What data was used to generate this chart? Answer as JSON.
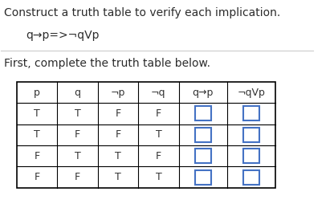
{
  "title_line1": "Construct a truth table to verify each implication.",
  "title_line2": "q→p=>¬qVp",
  "subtitle": "First, complete the truth table below.",
  "headers": [
    "p",
    "q",
    "¬p",
    "¬q",
    "q→p",
    "¬qVp"
  ],
  "rows": [
    [
      "T",
      "T",
      "F",
      "F",
      "",
      ""
    ],
    [
      "T",
      "F",
      "F",
      "T",
      "",
      ""
    ],
    [
      "F",
      "T",
      "T",
      "F",
      "",
      ""
    ],
    [
      "F",
      "F",
      "T",
      "T",
      "",
      ""
    ]
  ],
  "bg_color": "#ffffff",
  "text_color": "#2c2c2c",
  "header_text_color": "#333333",
  "cell_text_color": "#333333",
  "box_color": "#4472c4",
  "grid_color": "#000000",
  "sep_color": "#cccccc",
  "font_size_title": 10,
  "font_size_table": 9
}
